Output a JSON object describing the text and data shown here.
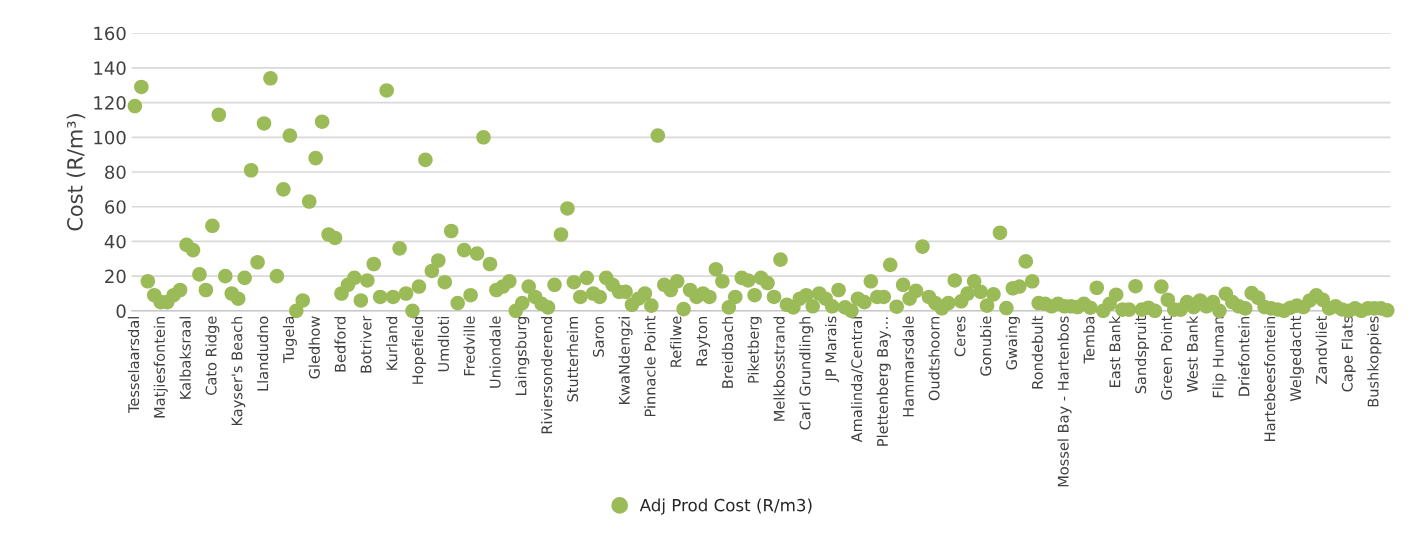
{
  "chart_data": {
    "type": "scatter",
    "ylabel": "Cost (R/m³)",
    "categories": [
      "Tesselaarsdal",
      null,
      null,
      null,
      "Matjiesfontein",
      null,
      null,
      null,
      "Kalbaksraal",
      null,
      null,
      null,
      "Cato Ridge",
      null,
      null,
      null,
      "Kayser's Beach",
      null,
      null,
      null,
      "Llandudno",
      null,
      null,
      null,
      "Tugela",
      null,
      null,
      null,
      "Gledhow",
      null,
      null,
      null,
      "Bedford",
      null,
      null,
      null,
      "Botriver",
      null,
      null,
      null,
      "Kurland",
      null,
      null,
      null,
      "Hopefield",
      null,
      null,
      null,
      "Umdloti",
      null,
      null,
      null,
      "Fredville",
      null,
      null,
      null,
      "Uniondale",
      null,
      null,
      null,
      "Laingsburg",
      null,
      null,
      null,
      "Riviersonderend",
      null,
      null,
      null,
      "Stutterheim",
      null,
      null,
      null,
      "Saron",
      null,
      null,
      null,
      "KwaNdengzi",
      null,
      null,
      null,
      "Pinnacle Point",
      null,
      null,
      null,
      "Refilwe",
      null,
      null,
      null,
      "Rayton",
      null,
      null,
      null,
      "Breidbach",
      null,
      null,
      null,
      "Piketberg",
      null,
      null,
      null,
      "Melkbosstrand",
      null,
      null,
      null,
      "Carl Grundlingh",
      null,
      null,
      null,
      "JP Marais",
      null,
      null,
      null,
      "Amalinda/Central",
      null,
      null,
      null,
      "Plettenberg Bay…",
      null,
      null,
      null,
      "Hammarsdale",
      null,
      null,
      null,
      "Oudtshoorn",
      null,
      null,
      null,
      "Ceres",
      null,
      null,
      null,
      "Gonubie",
      null,
      null,
      null,
      "Gwaing",
      null,
      null,
      null,
      "Rondebult",
      null,
      null,
      null,
      "Mossel Bay - Hartenbos",
      null,
      null,
      null,
      "Temba",
      null,
      null,
      null,
      "East Bank",
      null,
      null,
      null,
      "Sandspruit",
      null,
      null,
      null,
      "Green Point",
      null,
      null,
      null,
      "West Bank",
      null,
      null,
      null,
      "Flip Human",
      null,
      null,
      null,
      "Driefontein",
      null,
      null,
      null,
      "Hartebeesfontein",
      null,
      null,
      null,
      "Welgedacht",
      null,
      null,
      null,
      "Zandvliet",
      null,
      null,
      null,
      "Cape Flats",
      null,
      null,
      null,
      "Bushkoppies",
      null,
      null
    ],
    "series": [
      {
        "name": "Adj Prod Cost (R/m3)",
        "color": "#9bbb59",
        "values": [
          118,
          129,
          17,
          9,
          5,
          5,
          9,
          12,
          38,
          35,
          21,
          12,
          49,
          113,
          20,
          10,
          7,
          19,
          81,
          28,
          108,
          134,
          20,
          70,
          101,
          0,
          6,
          63,
          88,
          109,
          44,
          42,
          10,
          15,
          19,
          6,
          17.5,
          27,
          8,
          127,
          8,
          36,
          10,
          0,
          14,
          87,
          23,
          29,
          16.5,
          46,
          4.5,
          35,
          9,
          33,
          100,
          27,
          12,
          14,
          17,
          0,
          4.5,
          14,
          8,
          4,
          2,
          15,
          44,
          59,
          16.5,
          8,
          19,
          10,
          8,
          19,
          15,
          11,
          11,
          3.5,
          7,
          10,
          3,
          101,
          15,
          12,
          17,
          1,
          12,
          8,
          10,
          8,
          24,
          17,
          2,
          8,
          19,
          17.5,
          9,
          19,
          16,
          8,
          29.5,
          3.5,
          2,
          7,
          9,
          2.6,
          10,
          7,
          2.6,
          12,
          2,
          0,
          7,
          5,
          17,
          8,
          8,
          26.5,
          2.4,
          15,
          7,
          11.5,
          37,
          8,
          4.5,
          1.5,
          4.5,
          17.5,
          5.5,
          10,
          17,
          11,
          3,
          9.5,
          45,
          1.6,
          13,
          14,
          28.5,
          17,
          4.5,
          4,
          2.6,
          4,
          2.6,
          2.6,
          2.2,
          4,
          1.8,
          13.3,
          0,
          4,
          9.3,
          0.7,
          0.7,
          14.2,
          0.7,
          1.8,
          0,
          14,
          6.4,
          0.7,
          0.7,
          5,
          2.2,
          6,
          2.6,
          5,
          0,
          9.8,
          5,
          2.6,
          1.4,
          10.2,
          7.5,
          2.2,
          1.4,
          0.8,
          0,
          1.8,
          3,
          2.2,
          6,
          8.9,
          6.4,
          1.4,
          2.6,
          0.8,
          0,
          1.4,
          0,
          1.4,
          1.4,
          1.4,
          0.3
        ]
      }
    ],
    "ylim": [
      0,
      160
    ],
    "yticks": [
      0,
      20,
      40,
      60,
      80,
      100,
      120,
      140,
      160
    ],
    "grid": "y",
    "legend": "bottom",
    "marker": "circle"
  }
}
